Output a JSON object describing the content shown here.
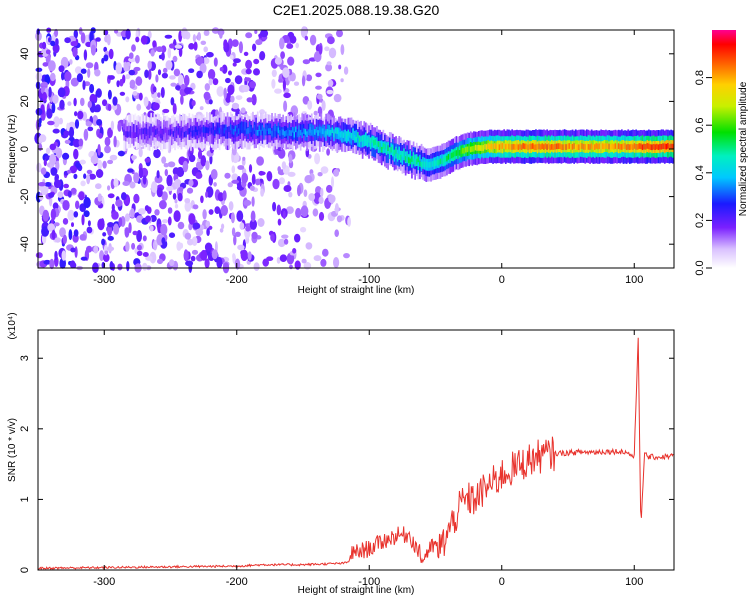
{
  "title": "C2E1.2025.088.19.38.G20",
  "chart_data": [
    {
      "type": "heatmap",
      "xlabel": "Height of straight line (km)",
      "ylabel": "Frequency (Hz)",
      "xlim": [
        -350,
        130
      ],
      "ylim": [
        -50,
        50
      ],
      "xticks": [
        -300,
        -200,
        -100,
        0,
        100
      ],
      "yticks": [
        -40,
        -20,
        0,
        20,
        40
      ],
      "xtick_labels": [
        "-300",
        "-200",
        "-100",
        "0",
        "100"
      ],
      "ytick_labels": [
        "-40",
        "-20",
        "0",
        "20",
        "40"
      ],
      "colorbar": {
        "label": "Normalized spectral amplitude",
        "range": [
          0,
          1
        ],
        "ticks": [
          0,
          0.2,
          0.4,
          0.6,
          0.8
        ],
        "tick_labels": [
          "0.0",
          "0.2",
          "0.4",
          "0.6",
          "0.8"
        ],
        "colormap": "rainbow (white → violet → blue → cyan → green → yellow → orange → red → magenta)"
      },
      "ridge": {
        "x": [
          -280,
          -250,
          -200,
          -150,
          -130,
          -110,
          -95,
          -80,
          -65,
          -55,
          -45,
          -35,
          -25,
          -10,
          0,
          20,
          40,
          60,
          80,
          100,
          110,
          130
        ],
        "freq": [
          7,
          7,
          8,
          7,
          7,
          5,
          2,
          -2,
          -5,
          -7,
          -5,
          -2,
          0,
          1,
          1,
          1,
          1,
          1,
          1,
          1,
          1,
          1
        ],
        "amplitude": [
          0.2,
          0.2,
          0.3,
          0.35,
          0.4,
          0.45,
          0.5,
          0.5,
          0.5,
          0.45,
          0.5,
          0.55,
          0.65,
          0.75,
          0.8,
          0.85,
          0.85,
          0.8,
          0.8,
          0.85,
          0.9,
          0.9
        ]
      },
      "noise_region_x": [
        -350,
        -115
      ],
      "colors": {
        "ridge_core": "#ff2a00",
        "low": "#7a20ff"
      }
    },
    {
      "type": "line",
      "xlabel": "Height of straight line (km)",
      "ylabel": "SNR (10 * v/v)",
      "y_multiplier": "(x10⁴)",
      "xlim": [
        -350,
        130
      ],
      "ylim": [
        0,
        3.4
      ],
      "xticks": [
        -300,
        -200,
        -100,
        0,
        100
      ],
      "yticks": [
        0,
        1,
        2,
        3
      ],
      "xtick_labels": [
        "-300",
        "-200",
        "-100",
        "0",
        "100"
      ],
      "ytick_labels": [
        "0",
        "1",
        "2",
        "3"
      ],
      "series": [
        {
          "color": "#e8322c",
          "x": [
            -350,
            -300,
            -250,
            -200,
            -180,
            -150,
            -120,
            -110,
            -100,
            -90,
            -80,
            -70,
            -60,
            -50,
            -45,
            -40,
            -35,
            -30,
            -25,
            -20,
            -15,
            -10,
            -5,
            0,
            10,
            20,
            30,
            40,
            50,
            60,
            70,
            80,
            90,
            95,
            100,
            103,
            105,
            108,
            110,
            120,
            130
          ],
          "y": [
            0.01,
            0.02,
            0.03,
            0.04,
            0.06,
            0.06,
            0.08,
            0.12,
            0.18,
            0.28,
            0.36,
            0.38,
            0.05,
            0.25,
            0.35,
            0.55,
            0.75,
            0.95,
            1.0,
            1.0,
            1.1,
            1.2,
            1.25,
            1.35,
            1.45,
            1.55,
            1.62,
            1.65,
            1.66,
            1.67,
            1.67,
            1.68,
            1.68,
            1.66,
            1.6,
            3.3,
            0.6,
            1.7,
            1.6,
            1.6,
            1.62
          ]
        }
      ]
    }
  ]
}
